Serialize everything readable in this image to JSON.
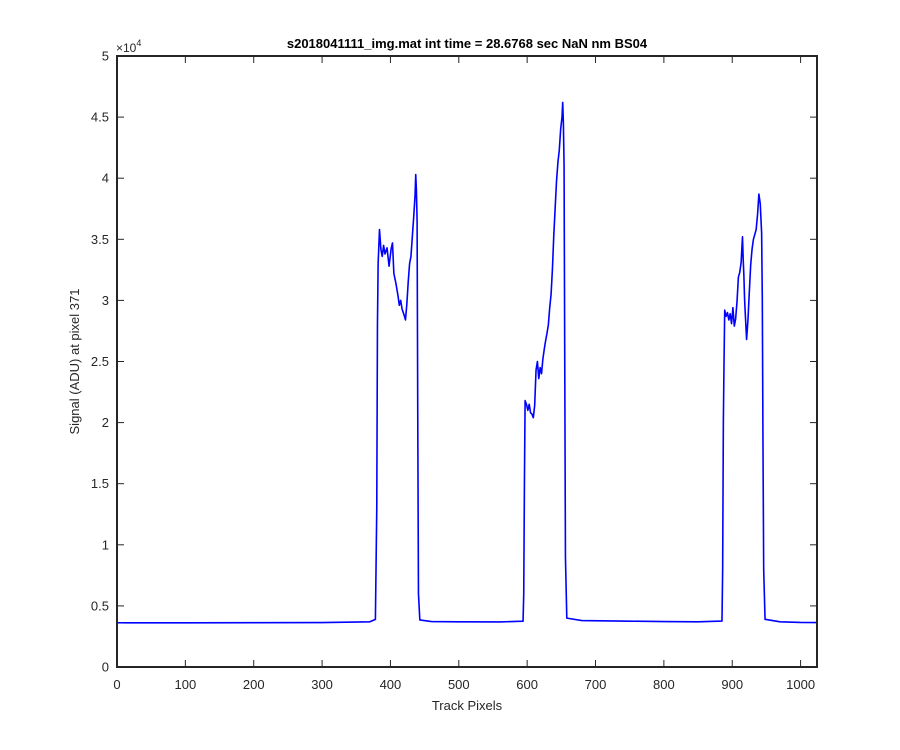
{
  "chart_data": {
    "type": "line",
    "title": "s2018041111_img.mat int time = 28.6768 sec  NaN nm BS04",
    "xlabel": "Track Pixels",
    "ylabel": "Signal (ADU) at pixel 371",
    "xlim": [
      0,
      1024
    ],
    "ylim": [
      0,
      50000
    ],
    "x_ticks": [
      0,
      100,
      200,
      300,
      400,
      500,
      600,
      700,
      800,
      900,
      1000
    ],
    "x_tick_labels": [
      "0",
      "100",
      "200",
      "300",
      "400",
      "500",
      "600",
      "700",
      "800",
      "900",
      "1000"
    ],
    "y_ticks": [
      0,
      5000,
      10000,
      15000,
      20000,
      25000,
      30000,
      35000,
      40000,
      45000,
      50000
    ],
    "y_tick_labels": [
      "0",
      "0.5",
      "1",
      "1.5",
      "2",
      "2.5",
      "3",
      "3.5",
      "4",
      "4.5",
      "5"
    ],
    "y_exponent_base": "×10",
    "y_exponent_power": "4",
    "grid": false,
    "series": [
      {
        "color": "#0000ff",
        "points": [
          [
            0,
            3620
          ],
          [
            100,
            3615
          ],
          [
            200,
            3625
          ],
          [
            300,
            3640
          ],
          [
            370,
            3700
          ],
          [
            378,
            3900
          ],
          [
            380,
            13000
          ],
          [
            381,
            28000
          ],
          [
            382,
            33000
          ],
          [
            384,
            35800
          ],
          [
            386,
            34200
          ],
          [
            388,
            33600
          ],
          [
            390,
            34500
          ],
          [
            392,
            33800
          ],
          [
            395,
            34300
          ],
          [
            398,
            32800
          ],
          [
            401,
            34200
          ],
          [
            403,
            34700
          ],
          [
            405,
            32200
          ],
          [
            408,
            31400
          ],
          [
            411,
            30400
          ],
          [
            413,
            29600
          ],
          [
            415,
            30000
          ],
          [
            417,
            29300
          ],
          [
            420,
            28800
          ],
          [
            422,
            28400
          ],
          [
            424,
            29700
          ],
          [
            426,
            31500
          ],
          [
            428,
            33000
          ],
          [
            430,
            33600
          ],
          [
            432,
            35200
          ],
          [
            434,
            36800
          ],
          [
            436,
            38600
          ],
          [
            437,
            40300
          ],
          [
            438,
            39000
          ],
          [
            439,
            36500
          ],
          [
            440,
            20000
          ],
          [
            441,
            6000
          ],
          [
            443,
            3850
          ],
          [
            460,
            3720
          ],
          [
            500,
            3700
          ],
          [
            560,
            3690
          ],
          [
            594,
            3750
          ],
          [
            595,
            6000
          ],
          [
            596,
            15000
          ],
          [
            597,
            21800
          ],
          [
            599,
            21500
          ],
          [
            601,
            21000
          ],
          [
            603,
            21500
          ],
          [
            605,
            20800
          ],
          [
            607,
            20700
          ],
          [
            609,
            20400
          ],
          [
            611,
            21400
          ],
          [
            613,
            24300
          ],
          [
            615,
            25000
          ],
          [
            617,
            23600
          ],
          [
            619,
            24500
          ],
          [
            621,
            24000
          ],
          [
            623,
            25200
          ],
          [
            625,
            26000
          ],
          [
            627,
            26700
          ],
          [
            629,
            27300
          ],
          [
            631,
            28000
          ],
          [
            633,
            29400
          ],
          [
            635,
            30500
          ],
          [
            637,
            32600
          ],
          [
            639,
            35400
          ],
          [
            641,
            37600
          ],
          [
            643,
            39800
          ],
          [
            645,
            41300
          ],
          [
            647,
            42300
          ],
          [
            649,
            44000
          ],
          [
            651,
            45000
          ],
          [
            652,
            46200
          ],
          [
            653,
            44500
          ],
          [
            654,
            41000
          ],
          [
            655,
            25000
          ],
          [
            656,
            9000
          ],
          [
            658,
            4000
          ],
          [
            680,
            3800
          ],
          [
            750,
            3750
          ],
          [
            800,
            3720
          ],
          [
            850,
            3700
          ],
          [
            885,
            3760
          ],
          [
            886,
            8000
          ],
          [
            887,
            20000
          ],
          [
            888,
            25000
          ],
          [
            889,
            29200
          ],
          [
            891,
            28700
          ],
          [
            893,
            29000
          ],
          [
            895,
            28400
          ],
          [
            897,
            28900
          ],
          [
            899,
            28100
          ],
          [
            901,
            29400
          ],
          [
            903,
            27900
          ],
          [
            905,
            28500
          ],
          [
            907,
            29900
          ],
          [
            909,
            31900
          ],
          [
            911,
            32300
          ],
          [
            913,
            33100
          ],
          [
            915,
            35200
          ],
          [
            916,
            33400
          ],
          [
            917,
            32100
          ],
          [
            918,
            30200
          ],
          [
            919,
            29000
          ],
          [
            921,
            26800
          ],
          [
            923,
            28400
          ],
          [
            925,
            30700
          ],
          [
            927,
            32900
          ],
          [
            929,
            34200
          ],
          [
            931,
            35000
          ],
          [
            933,
            35400
          ],
          [
            935,
            35800
          ],
          [
            937,
            37000
          ],
          [
            939,
            38700
          ],
          [
            941,
            37900
          ],
          [
            943,
            35500
          ],
          [
            944,
            30000
          ],
          [
            945,
            18000
          ],
          [
            946,
            8000
          ],
          [
            948,
            3900
          ],
          [
            970,
            3700
          ],
          [
            1000,
            3650
          ],
          [
            1024,
            3640
          ]
        ]
      }
    ]
  }
}
